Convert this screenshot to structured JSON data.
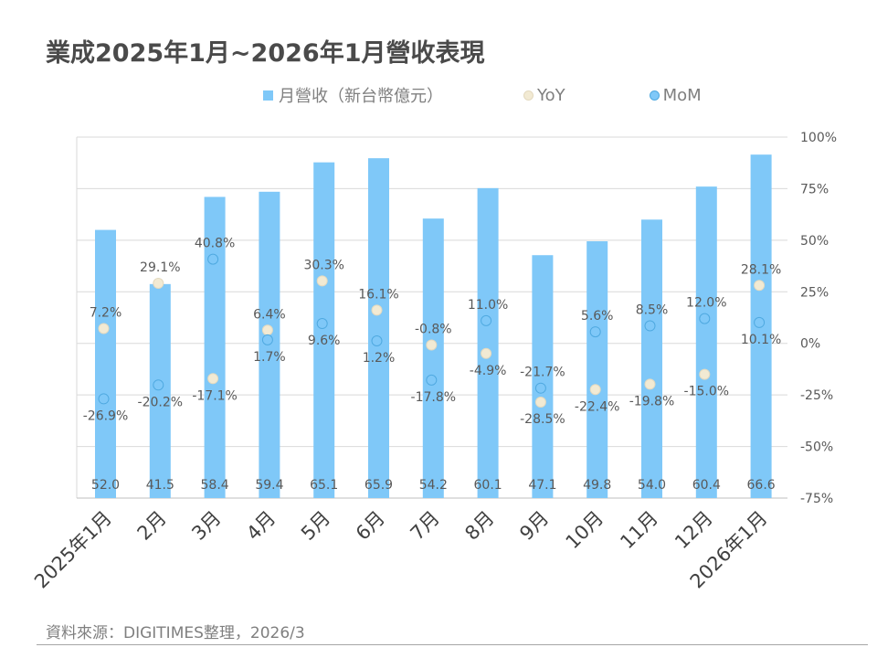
{
  "title": "業成2025年1月~2026年1月營收表現",
  "legend": {
    "revenue": "月營收（新台幣億元）",
    "yoy": "YoY",
    "mom": "MoM"
  },
  "source": "資料來源：DIGITIMES整理，2026/3",
  "colors": {
    "bar": "#7fc8f8",
    "mom_marker_fill": "#7fc8f8",
    "mom_marker_stroke": "#4fa9e0",
    "yoy_marker_fill": "#f2ead3",
    "yoy_marker_stroke": "#e3d9bf",
    "grid": "#d9d9d9",
    "text": "#595959"
  },
  "chart_data": {
    "type": "bar",
    "categories": [
      "2025年1月",
      "2月",
      "3月",
      "4月",
      "5月",
      "6月",
      "7月",
      "8月",
      "9月",
      "10月",
      "11月",
      "12月",
      "2026年1月"
    ],
    "series": [
      {
        "name": "月營收（新台幣億元）",
        "type": "bar",
        "axis": "left",
        "values": [
          52.0,
          41.5,
          58.4,
          59.4,
          65.1,
          65.9,
          54.2,
          60.1,
          47.1,
          49.8,
          54.0,
          60.4,
          66.6
        ],
        "labels": [
          "52.0",
          "41.5",
          "58.4",
          "59.4",
          "65.1",
          "65.9",
          "54.2",
          "60.1",
          "47.1",
          "49.8",
          "54.0",
          "60.4",
          "66.6"
        ]
      },
      {
        "name": "YoY",
        "type": "scatter",
        "axis": "right",
        "values": [
          7.2,
          29.1,
          -17.1,
          6.4,
          30.3,
          16.1,
          -0.8,
          -4.9,
          -28.5,
          -22.4,
          -19.8,
          -15.0,
          28.1
        ],
        "labels": [
          "7.2%",
          "29.1%",
          "-17.1%",
          "6.4%",
          "30.3%",
          "16.1%",
          "-0.8%",
          "-4.9%",
          "-28.5%",
          "-22.4%",
          "-19.8%",
          "-15.0%",
          "28.1%"
        ]
      },
      {
        "name": "MoM",
        "type": "scatter",
        "axis": "right",
        "values": [
          -26.9,
          -20.2,
          40.8,
          1.7,
          9.6,
          1.2,
          -17.8,
          11.0,
          -21.7,
          5.6,
          8.5,
          12.0,
          10.1
        ],
        "labels": [
          "-26.9%",
          "-20.2%",
          "40.8%",
          "1.7%",
          "9.6%",
          "1.2%",
          "-17.8%",
          "11.0%",
          "-21.7%",
          "5.6%",
          "8.5%",
          "12.0%",
          "10.1%"
        ]
      }
    ],
    "yticks_right": [
      "100%",
      "75%",
      "50%",
      "25%",
      "0%",
      "-25%",
      "-50%",
      "-75%"
    ],
    "yticks_right_values": [
      100,
      75,
      50,
      25,
      0,
      -25,
      -50,
      -75
    ],
    "ylim_right": [
      -75,
      100
    ],
    "ylim_left": [
      0,
      70
    ],
    "grid": true,
    "legend_position": "top"
  }
}
